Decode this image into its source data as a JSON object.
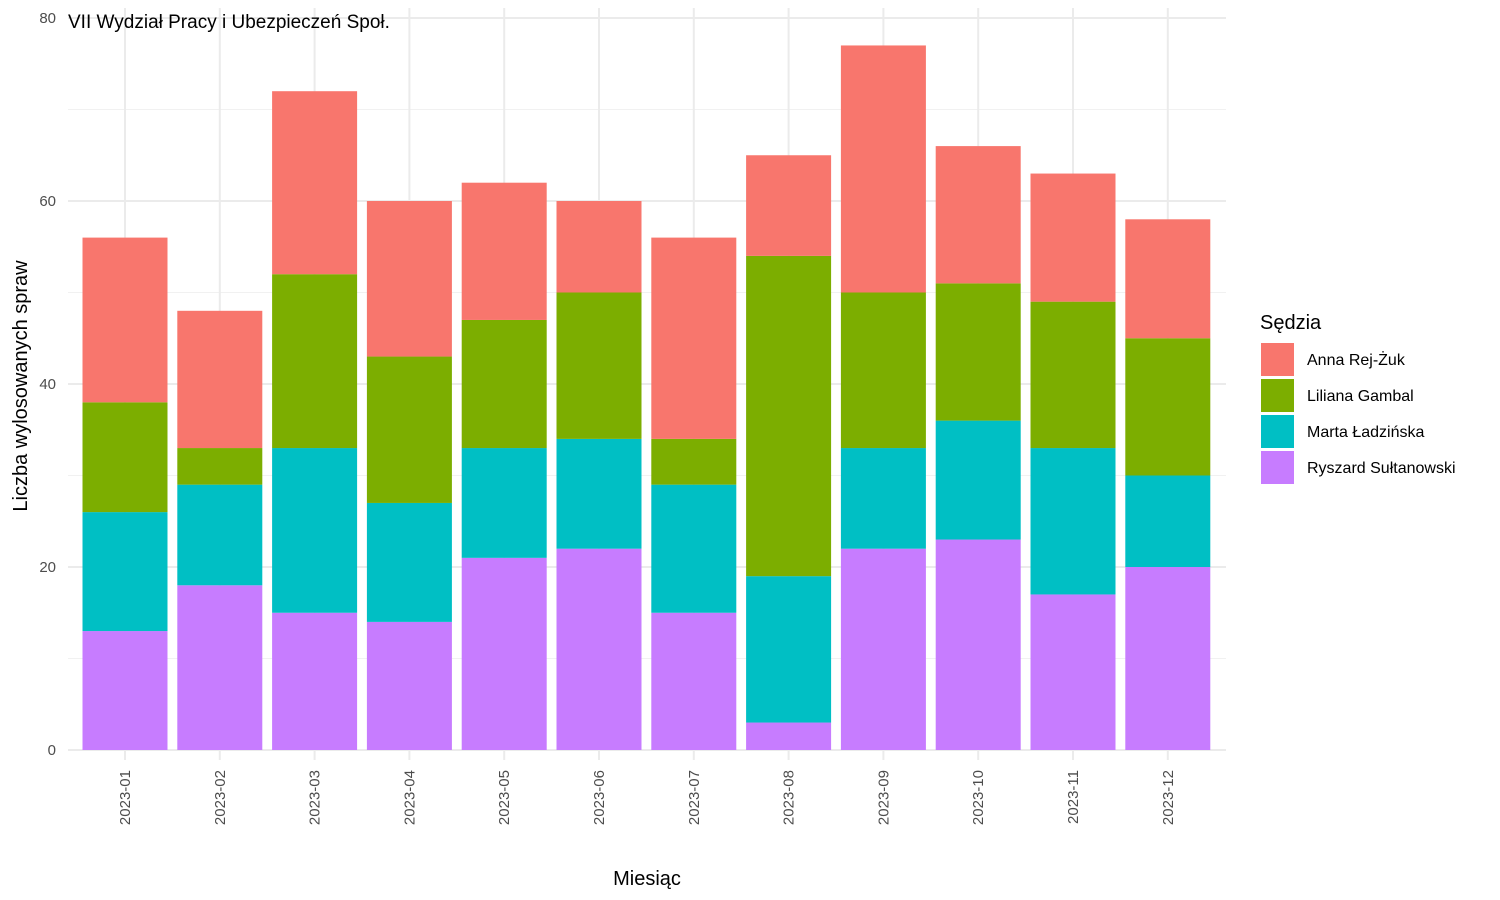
{
  "chart_data": {
    "type": "bar",
    "stacked": true,
    "title": "VII Wydział Pracy i Ubezpieczeń Społ.",
    "xlabel": "Miesiąc",
    "ylabel": "Liczba wylosowanych spraw",
    "ylim": [
      0,
      80
    ],
    "yticks": [
      0,
      20,
      40,
      60,
      80
    ],
    "grid": true,
    "legend_position": "right",
    "legend_title": "Sędzia",
    "categories": [
      "2023-01",
      "2023-02",
      "2023-03",
      "2023-04",
      "2023-05",
      "2023-06",
      "2023-07",
      "2023-08",
      "2023-09",
      "2023-10",
      "2023-11",
      "2023-12"
    ],
    "series": [
      {
        "name": "Anna Rej-Żuk",
        "color": "#F8766D",
        "values": [
          18,
          15,
          20,
          17,
          15,
          10,
          22,
          11,
          27,
          15,
          14,
          13
        ]
      },
      {
        "name": "Liliana Gambal",
        "color": "#7CAE00",
        "values": [
          12,
          4,
          19,
          16,
          14,
          16,
          5,
          35,
          17,
          15,
          16,
          15
        ]
      },
      {
        "name": "Marta Ładzińska",
        "color": "#00BFC4",
        "values": [
          13,
          11,
          18,
          13,
          12,
          12,
          14,
          16,
          11,
          13,
          16,
          10
        ]
      },
      {
        "name": "Ryszard Sułtanowski",
        "color": "#C77CFF",
        "values": [
          13,
          18,
          15,
          14,
          21,
          22,
          15,
          3,
          22,
          23,
          17,
          20
        ]
      }
    ],
    "stack_order_bottom_to_top": [
      3,
      2,
      1,
      0
    ]
  }
}
